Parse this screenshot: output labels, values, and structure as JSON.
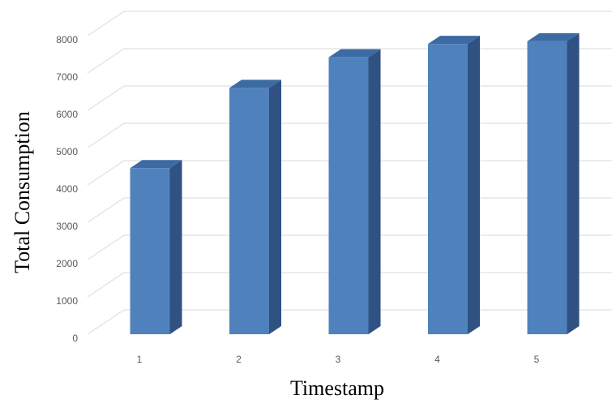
{
  "chart_data": {
    "type": "bar",
    "style": "3d-column",
    "categories": [
      "1",
      "2",
      "3",
      "4",
      "5"
    ],
    "values": [
      4450,
      6600,
      7420,
      7780,
      7850
    ],
    "xlabel": "Timestamp",
    "ylabel": "Total Consumption",
    "ylim": [
      0,
      8000
    ],
    "yticks": [
      "0",
      "1000",
      "2000",
      "3000",
      "4000",
      "5000",
      "6000",
      "7000",
      "8000"
    ],
    "grid": true,
    "legend": "none",
    "colors": {
      "bar_front": "#4f81bd",
      "bar_side": "#2f5283",
      "bar_top": "#3c6aa3",
      "grid": "#d9d9d9",
      "tick_text": "#595959"
    }
  }
}
